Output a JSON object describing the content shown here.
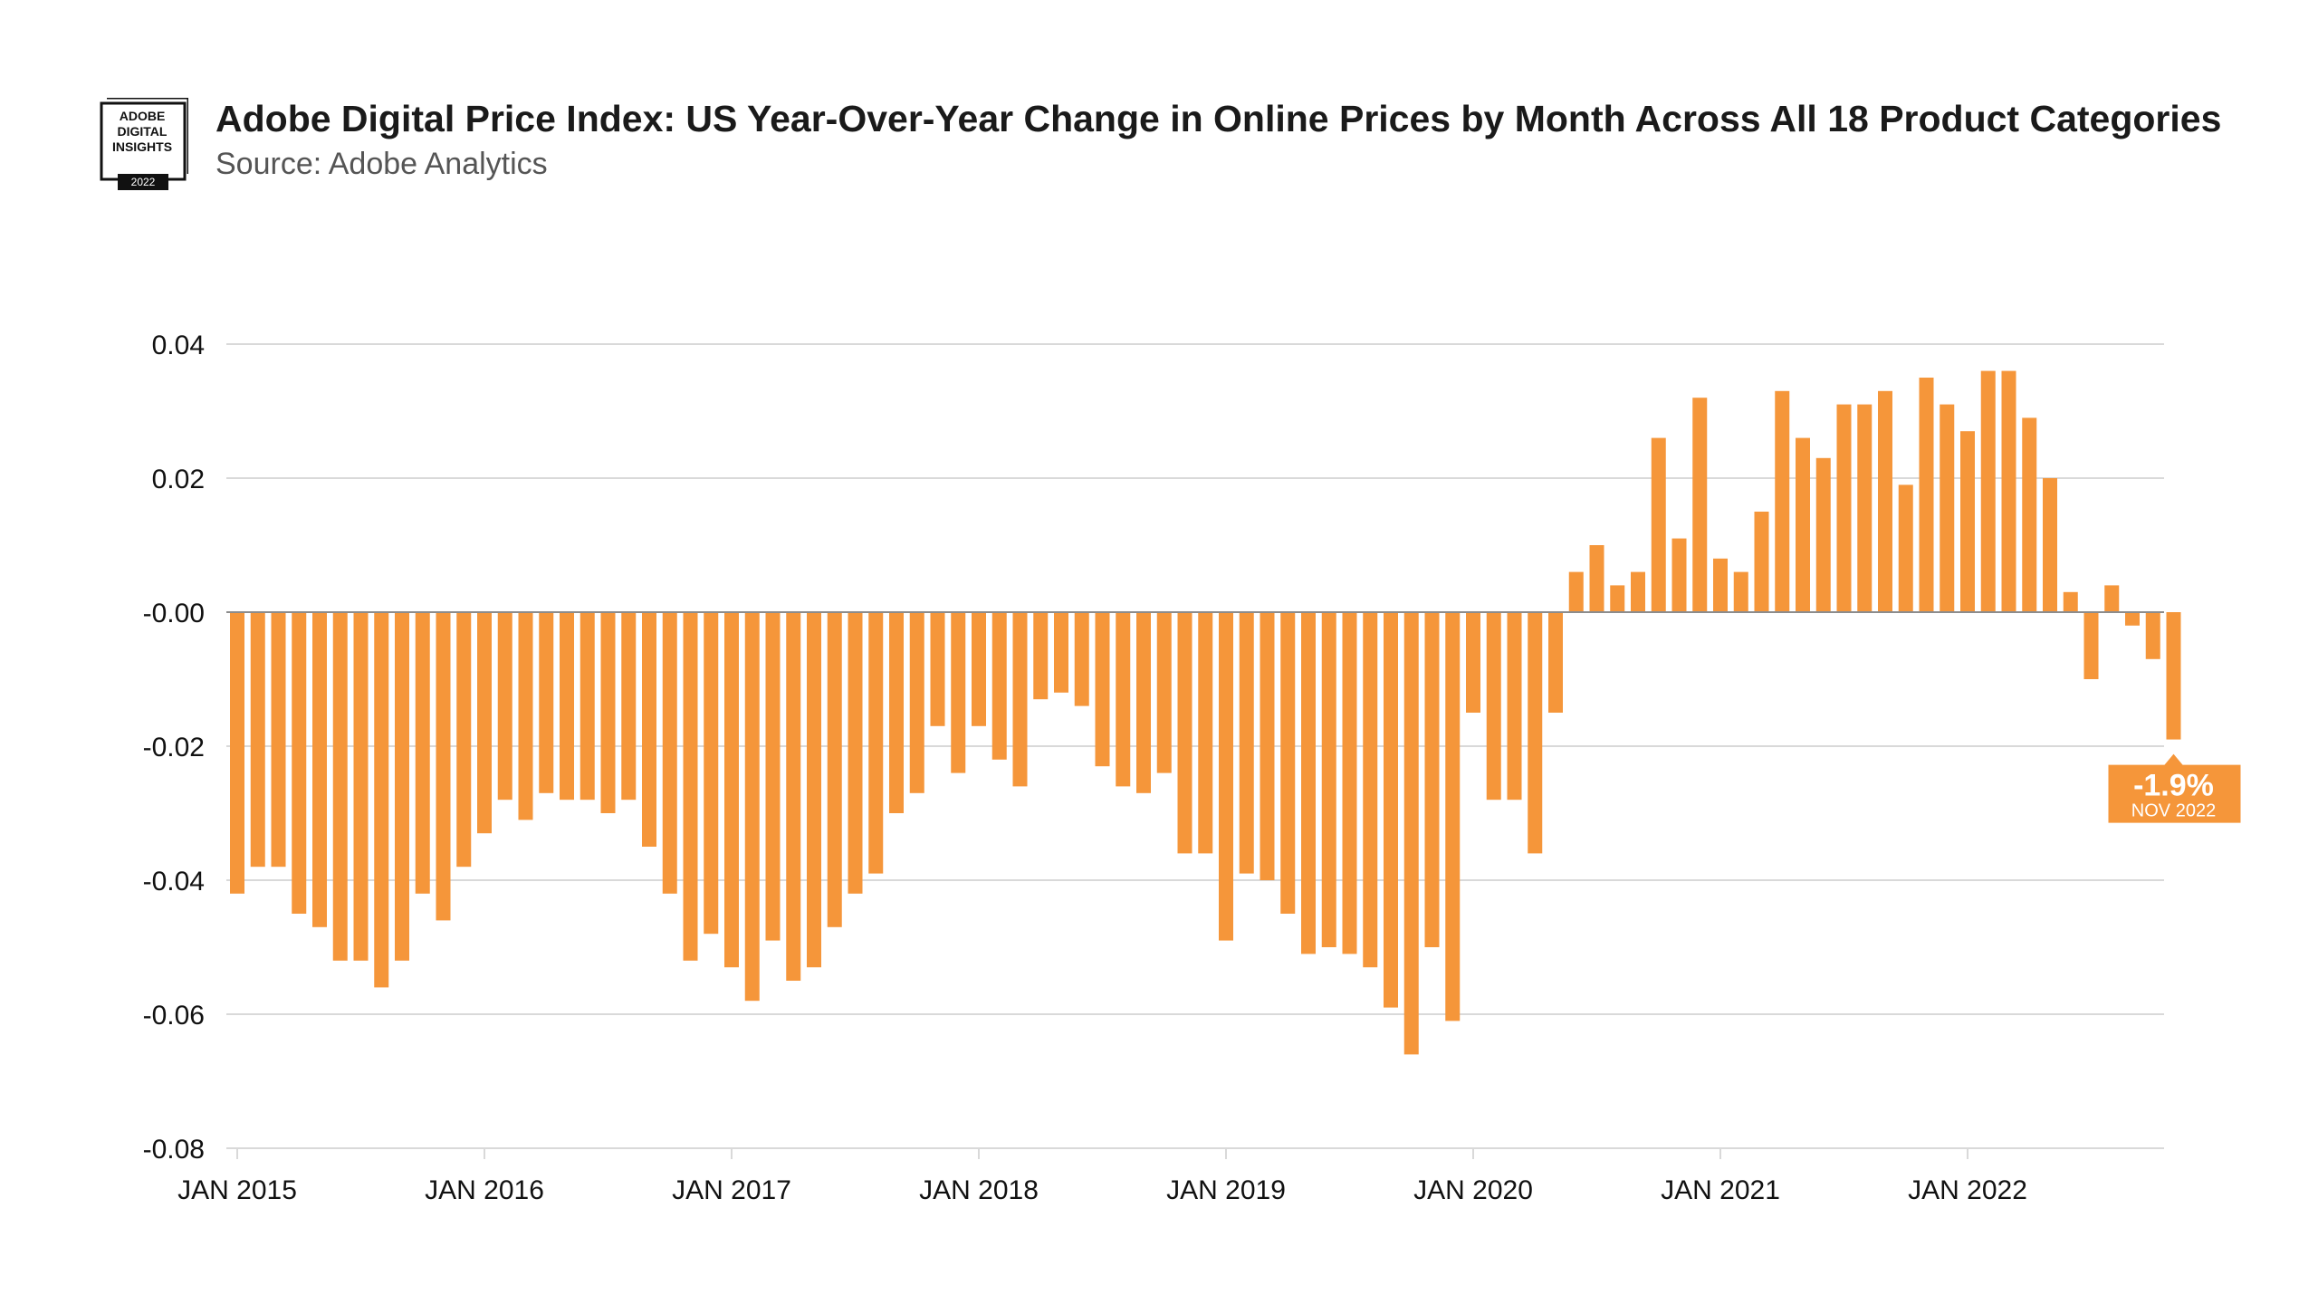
{
  "header": {
    "title": "Adobe Digital Price Index: US Year-Over-Year Change in Online Prices by Month Across All 18 Product Categories",
    "subtitle": "Source: Adobe Analytics",
    "logo": {
      "line1": "ADOBE",
      "line2": "DIGITAL",
      "line3": "INSIGHTS",
      "year": "2022"
    }
  },
  "colors": {
    "bar": "#F5963A",
    "grid": "#d9d9d9",
    "zero_line": "#8c8c8c"
  },
  "chart_data": {
    "type": "bar",
    "title": "Adobe Digital Price Index: US Year-Over-Year Change in Online Prices by Month Across All 18 Product Categories",
    "subtitle": "Source: Adobe Analytics",
    "xlabel": "",
    "ylabel": "",
    "ylim": [
      -0.08,
      0.04
    ],
    "yticks": [
      0.04,
      0.02,
      0.0,
      -0.02,
      -0.04,
      -0.06,
      -0.08
    ],
    "ytick_labels": [
      "0.04",
      "0.02",
      "-0.00",
      "-0.02",
      "-0.04",
      "-0.06",
      "-0.08"
    ],
    "grid": true,
    "start_month": "2015-01",
    "end_month": "2022-11",
    "xtick_labels": [
      "JAN 2015",
      "JAN 2016",
      "JAN 2017",
      "JAN 2018",
      "JAN 2019",
      "JAN 2020",
      "JAN 2021",
      "JAN 2022"
    ],
    "values": [
      -0.042,
      -0.038,
      -0.038,
      -0.045,
      -0.047,
      -0.052,
      -0.052,
      -0.056,
      -0.052,
      -0.042,
      -0.046,
      -0.038,
      -0.033,
      -0.028,
      -0.031,
      -0.027,
      -0.028,
      -0.028,
      -0.03,
      -0.028,
      -0.035,
      -0.042,
      -0.052,
      -0.048,
      -0.053,
      -0.058,
      -0.049,
      -0.055,
      -0.053,
      -0.047,
      -0.042,
      -0.039,
      -0.03,
      -0.027,
      -0.017,
      -0.024,
      -0.017,
      -0.022,
      -0.026,
      -0.013,
      -0.012,
      -0.014,
      -0.023,
      -0.026,
      -0.027,
      -0.024,
      -0.036,
      -0.036,
      -0.049,
      -0.039,
      -0.04,
      -0.045,
      -0.051,
      -0.05,
      -0.051,
      -0.053,
      -0.059,
      -0.066,
      -0.05,
      -0.061,
      -0.015,
      -0.028,
      -0.028,
      -0.036,
      -0.015,
      0.006,
      0.01,
      0.004,
      0.006,
      0.026,
      0.011,
      0.032,
      0.008,
      0.006,
      0.015,
      0.033,
      0.026,
      0.023,
      0.031,
      0.031,
      0.033,
      0.019,
      0.035,
      0.031,
      0.027,
      0.036,
      0.036,
      0.029,
      0.02,
      0.003,
      -0.01,
      0.004,
      -0.002,
      -0.007,
      -0.019
    ],
    "annotation": {
      "value_label": "-1.9%",
      "date_label": "NOV 2022",
      "index": 94
    }
  }
}
